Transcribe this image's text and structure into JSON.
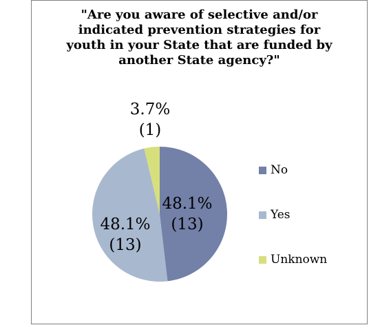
{
  "chart_data": {
    "type": "pie",
    "title": "\"Are you aware of selective and/or indicated prevention strategies for youth in your State that are funded by another State agency?\"",
    "title_lines": [
      "\"Are you aware of selective and/or",
      "indicated prevention strategies for",
      "youth in your State that are funded by",
      "another State agency?\""
    ],
    "slices": [
      {
        "name": "No",
        "value": 13,
        "percent_label": "48.1%",
        "count_label": "(13)",
        "color": "#7380a8"
      },
      {
        "name": "Yes",
        "value": 13,
        "percent_label": "48.1%",
        "count_label": "(13)",
        "color": "#a8b8cf"
      },
      {
        "name": "Unknown",
        "value": 1,
        "percent_label": "3.7%",
        "count_label": "(1)",
        "color": "#d7df7d"
      }
    ],
    "legend_position": "right"
  }
}
